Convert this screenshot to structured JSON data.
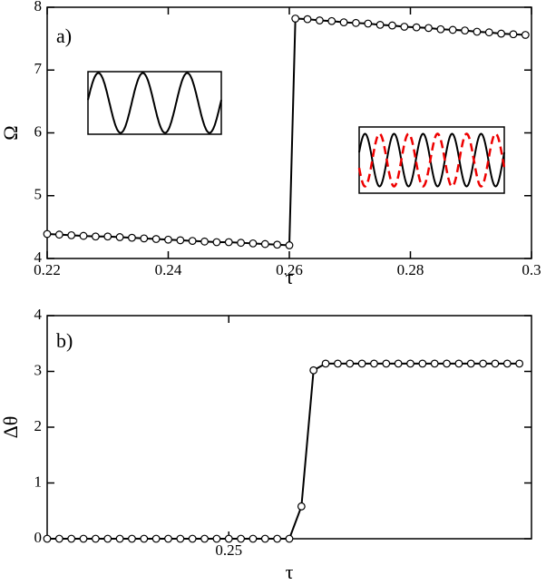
{
  "chart_data": [
    {
      "type": "line",
      "xlabel": "τ",
      "ylabel": "Ω",
      "annotation": "a)",
      "x": [
        0.22,
        0.222,
        0.224,
        0.226,
        0.228,
        0.23,
        0.232,
        0.234,
        0.236,
        0.238,
        0.24,
        0.242,
        0.244,
        0.246,
        0.248,
        0.25,
        0.252,
        0.254,
        0.256,
        0.258,
        0.26,
        0.261,
        0.263,
        0.265,
        0.267,
        0.269,
        0.271,
        0.273,
        0.275,
        0.277,
        0.279,
        0.281,
        0.283,
        0.285,
        0.287,
        0.289,
        0.291,
        0.293,
        0.295,
        0.297,
        0.299
      ],
      "series": [
        {
          "color": "#000000",
          "values": [
            4.39,
            4.38,
            4.37,
            4.36,
            4.35,
            4.35,
            4.34,
            4.33,
            4.32,
            4.31,
            4.3,
            4.29,
            4.28,
            4.27,
            4.26,
            4.26,
            4.25,
            4.24,
            4.23,
            4.22,
            4.21,
            7.82,
            7.81,
            7.79,
            7.78,
            7.76,
            7.75,
            7.74,
            7.72,
            7.71,
            7.69,
            7.68,
            7.67,
            7.65,
            7.64,
            7.63,
            7.61,
            7.6,
            7.58,
            7.57,
            7.56
          ]
        }
      ],
      "xlim": [
        0.22,
        0.3
      ],
      "xticks": [
        0.22,
        0.24,
        0.26,
        0.28,
        0.3
      ],
      "ylim": [
        4,
        8
      ],
      "yticks": [
        4,
        5,
        6,
        7,
        8
      ]
    },
    {
      "type": "line",
      "xlabel": "τ",
      "ylabel": "Δθ",
      "annotation": "b)",
      "x": [
        0.22,
        0.222,
        0.224,
        0.226,
        0.228,
        0.23,
        0.232,
        0.234,
        0.236,
        0.238,
        0.24,
        0.242,
        0.244,
        0.246,
        0.248,
        0.25,
        0.252,
        0.254,
        0.256,
        0.258,
        0.26,
        0.262,
        0.264,
        0.266,
        0.268,
        0.27,
        0.272,
        0.274,
        0.276,
        0.278,
        0.28,
        0.282,
        0.284,
        0.286,
        0.288,
        0.29,
        0.292,
        0.294,
        0.296,
        0.298
      ],
      "series": [
        {
          "color": "#000000",
          "values": [
            0,
            0,
            0,
            0,
            0,
            0,
            0,
            0,
            0,
            0,
            0,
            0,
            0,
            0,
            0,
            0,
            0,
            0,
            0,
            0,
            0,
            0.58,
            3.02,
            3.14,
            3.14,
            3.14,
            3.14,
            3.14,
            3.14,
            3.14,
            3.14,
            3.14,
            3.14,
            3.14,
            3.14,
            3.14,
            3.14,
            3.14,
            3.14,
            3.14
          ]
        }
      ],
      "xlim": [
        0.22,
        0.3
      ],
      "xticks": [
        0.25
      ],
      "ylim": [
        0,
        4
      ],
      "yticks": [
        0,
        1,
        2,
        3,
        4
      ]
    }
  ]
}
